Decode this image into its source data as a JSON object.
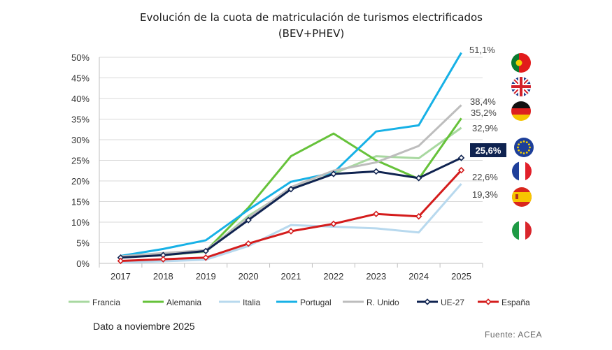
{
  "chart_data": {
    "type": "line",
    "title": "Evolución de la cuota de matriculación de turismos electrificados",
    "subtitle": "(BEV+PHEV)",
    "categories": [
      "2017",
      "2018",
      "2019",
      "2020",
      "2021",
      "2022",
      "2023",
      "2024",
      "2025"
    ],
    "y_ticks": [
      "0%",
      "5%",
      "10%",
      "15%",
      "20%",
      "25%",
      "30%",
      "35%",
      "40%",
      "45%",
      "50%"
    ],
    "ylim": [
      0,
      50
    ],
    "grid": true,
    "legend_position": "bottom",
    "series": [
      {
        "name": "Francia",
        "color": "#a8d8a0",
        "marker": false,
        "values": [
          1.5,
          2.0,
          2.8,
          11.5,
          18.0,
          21.8,
          26.0,
          25.5,
          32.9
        ],
        "end_label": "32,9%"
      },
      {
        "name": "Alemania",
        "color": "#66c23a",
        "marker": false,
        "values": [
          1.6,
          2.0,
          3.0,
          13.5,
          26.0,
          31.5,
          25.0,
          20.5,
          35.2
        ],
        "end_label": "35,2%"
      },
      {
        "name": "Italia",
        "color": "#b8d9ee",
        "marker": false,
        "values": [
          0.2,
          0.5,
          0.9,
          4.2,
          9.3,
          8.9,
          8.5,
          7.5,
          19.3
        ],
        "end_label": "19,3%"
      },
      {
        "name": "Portugal",
        "color": "#17b1e6",
        "marker": false,
        "values": [
          1.8,
          3.5,
          5.6,
          13.0,
          19.8,
          22.0,
          32.0,
          33.5,
          51.1
        ],
        "end_label": "51,1%"
      },
      {
        "name": "R. Unido",
        "color": "#bdbdbd",
        "marker": false,
        "values": [
          1.7,
          2.5,
          3.2,
          11.0,
          18.5,
          22.5,
          24.5,
          28.5,
          38.4
        ],
        "end_label": "38,4%"
      },
      {
        "name": "UE-27",
        "color": "#0f2350",
        "marker": true,
        "values": [
          1.4,
          2.0,
          3.0,
          10.5,
          18.0,
          21.7,
          22.3,
          20.7,
          25.6
        ],
        "end_label": "25,6%"
      },
      {
        "name": "España",
        "color": "#d41c1c",
        "marker": true,
        "values": [
          0.6,
          1.0,
          1.4,
          4.8,
          7.8,
          9.6,
          12.0,
          11.4,
          22.6
        ],
        "end_label": "22,6%"
      }
    ],
    "annotations": {
      "flags": [
        "Portugal",
        "Reino Unido",
        "Alemania",
        "Unión Europea",
        "Francia",
        "España",
        "Italia"
      ],
      "note": "Dato a noviembre 2025",
      "source": "Fuente: ACEA"
    }
  }
}
